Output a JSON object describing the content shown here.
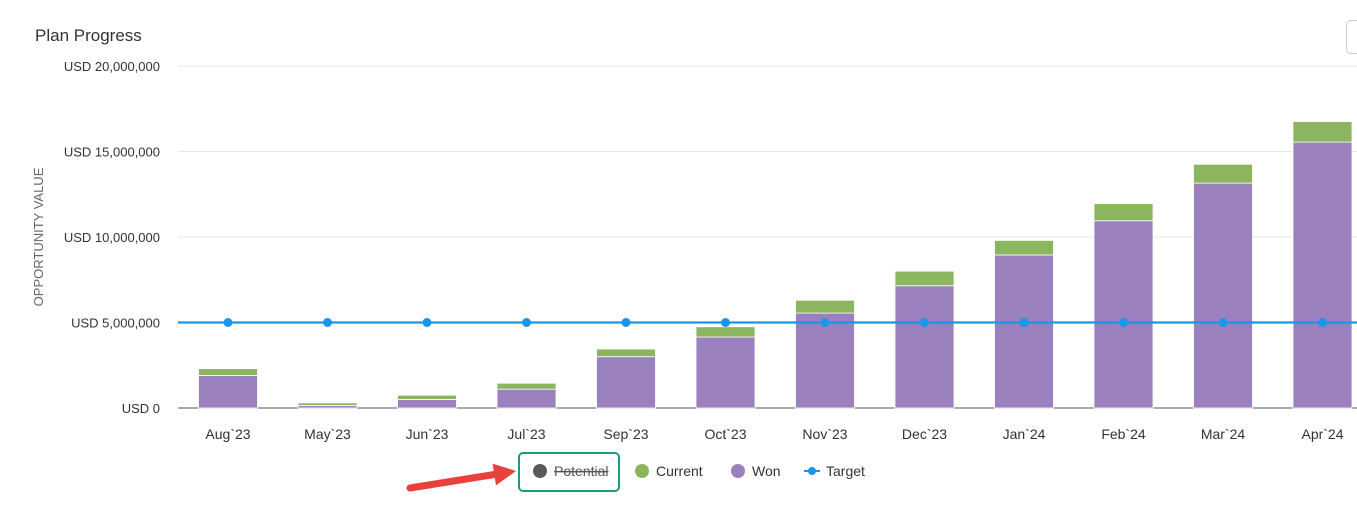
{
  "title": "Plan Progress",
  "chart_data": {
    "type": "bar",
    "stacked": true,
    "categories": [
      "Aug`23",
      "May`23",
      "Jun`23",
      "Jul`23",
      "Sep`23",
      "Oct`23",
      "Nov`23",
      "Dec`23",
      "Jan`24",
      "Feb`24",
      "Mar`24",
      "Apr`24"
    ],
    "series": [
      {
        "name": "Potential",
        "type": "bar",
        "color": "#5a5a5a",
        "hidden": true,
        "values": [
          0,
          0,
          0,
          0,
          0,
          0,
          0,
          0,
          0,
          0,
          0,
          0
        ]
      },
      {
        "name": "Won",
        "type": "bar",
        "color": "#9a80bc",
        "values": [
          1900000,
          150000,
          500000,
          1100000,
          3000000,
          4150000,
          5550000,
          7150000,
          8950000,
          10950000,
          13150000,
          15550000
        ]
      },
      {
        "name": "Current",
        "type": "bar",
        "color": "#8cb560",
        "values": [
          400000,
          150000,
          250000,
          350000,
          450000,
          600000,
          750000,
          850000,
          850000,
          1000000,
          1100000,
          1200000
        ]
      },
      {
        "name": "Target",
        "type": "line",
        "color": "#1a96e8",
        "values": [
          5000000,
          5000000,
          5000000,
          5000000,
          5000000,
          5000000,
          5000000,
          5000000,
          5000000,
          5000000,
          5000000,
          5000000
        ]
      }
    ],
    "ylabel": "OPPORTUNITY VALUE",
    "ylim": [
      0,
      20000000
    ],
    "yticks": [
      "USD 0",
      "USD 5,000,000",
      "USD 10,000,000",
      "USD 15,000,000",
      "USD 20,000,000"
    ],
    "legend": {
      "placement": "bottom-center",
      "items": [
        {
          "label": "Potential",
          "color": "#5a5a5a",
          "marker": "dot",
          "disabled": true
        },
        {
          "label": "Current",
          "color": "#8cb560",
          "marker": "dot"
        },
        {
          "label": "Won",
          "color": "#9a80bc",
          "marker": "dot"
        },
        {
          "label": "Target",
          "color": "#1a96e8",
          "marker": "line-dot"
        }
      ]
    },
    "grid": true,
    "annotation": {
      "type": "arrow",
      "color": "#e8403a",
      "points_to": "Potential"
    }
  }
}
